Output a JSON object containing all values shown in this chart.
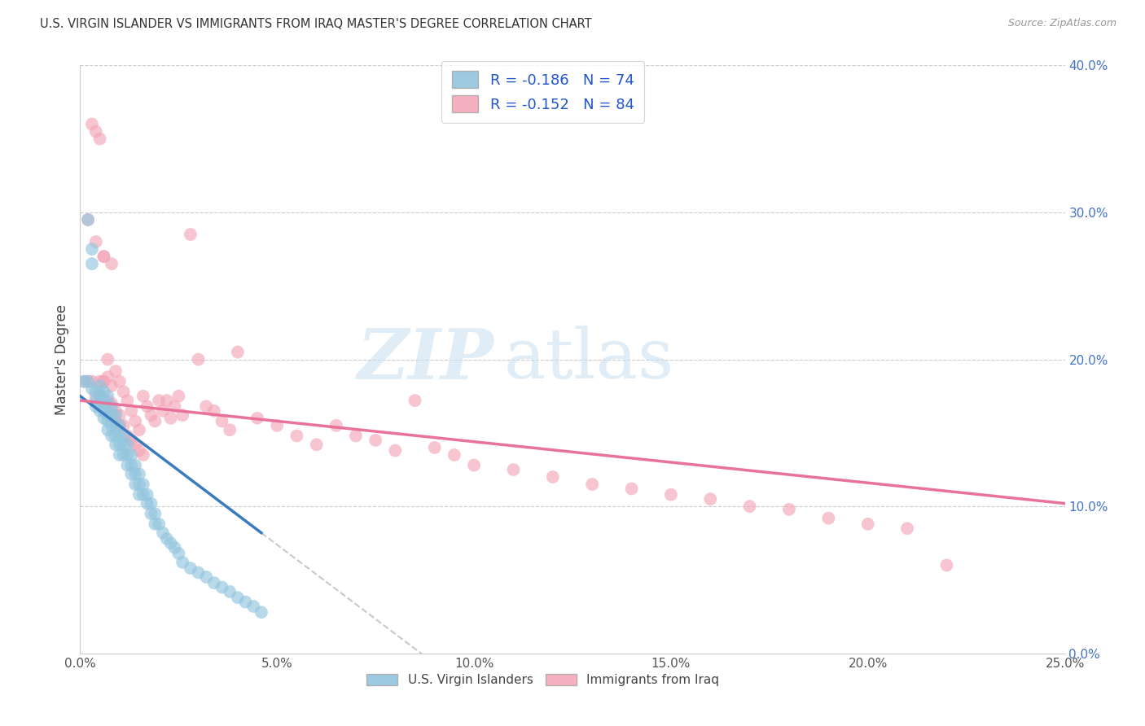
{
  "title": "U.S. VIRGIN ISLANDER VS IMMIGRANTS FROM IRAQ MASTER'S DEGREE CORRELATION CHART",
  "source": "Source: ZipAtlas.com",
  "ylabel": "Master's Degree",
  "xlabel_ticks": [
    "0.0%",
    "5.0%",
    "10.0%",
    "15.0%",
    "20.0%",
    "25.0%"
  ],
  "xlabel_vals": [
    0.0,
    0.05,
    0.1,
    0.15,
    0.2,
    0.25
  ],
  "ylabel_ticks": [
    "0.0%",
    "10.0%",
    "20.0%",
    "30.0%",
    "40.0%"
  ],
  "ylabel_vals": [
    0.0,
    0.1,
    0.2,
    0.3,
    0.4
  ],
  "xlim": [
    0.0,
    0.25
  ],
  "ylim": [
    0.0,
    0.4
  ],
  "legend1_label": "R = -0.186   N = 74",
  "legend2_label": "R = -0.152   N = 84",
  "legend_label1_bottom": "U.S. Virgin Islanders",
  "legend_label2_bottom": "Immigrants from Iraq",
  "blue_color": "#92c5de",
  "pink_color": "#f4a6b8",
  "blue_line_color": "#3a7bbf",
  "pink_line_color": "#e8729a",
  "dashed_line_color": "#bbbbbb",
  "watermark_ZIP": "ZIP",
  "watermark_atlas": "atlas",
  "blue_scatter_x": [
    0.001,
    0.002,
    0.002,
    0.003,
    0.003,
    0.003,
    0.004,
    0.004,
    0.004,
    0.005,
    0.005,
    0.005,
    0.005,
    0.006,
    0.006,
    0.006,
    0.006,
    0.007,
    0.007,
    0.007,
    0.007,
    0.007,
    0.008,
    0.008,
    0.008,
    0.008,
    0.009,
    0.009,
    0.009,
    0.009,
    0.01,
    0.01,
    0.01,
    0.01,
    0.011,
    0.011,
    0.011,
    0.012,
    0.012,
    0.012,
    0.013,
    0.013,
    0.013,
    0.014,
    0.014,
    0.014,
    0.015,
    0.015,
    0.015,
    0.016,
    0.016,
    0.017,
    0.017,
    0.018,
    0.018,
    0.019,
    0.019,
    0.02,
    0.021,
    0.022,
    0.023,
    0.024,
    0.025,
    0.026,
    0.028,
    0.03,
    0.032,
    0.034,
    0.036,
    0.038,
    0.04,
    0.042,
    0.044,
    0.046
  ],
  "blue_scatter_y": [
    0.185,
    0.295,
    0.185,
    0.275,
    0.265,
    0.18,
    0.178,
    0.172,
    0.168,
    0.182,
    0.176,
    0.17,
    0.165,
    0.178,
    0.172,
    0.165,
    0.16,
    0.175,
    0.168,
    0.162,
    0.158,
    0.152,
    0.168,
    0.162,
    0.155,
    0.148,
    0.162,
    0.155,
    0.148,
    0.142,
    0.155,
    0.148,
    0.142,
    0.135,
    0.148,
    0.142,
    0.135,
    0.142,
    0.135,
    0.128,
    0.135,
    0.128,
    0.122,
    0.128,
    0.122,
    0.115,
    0.122,
    0.115,
    0.108,
    0.115,
    0.108,
    0.108,
    0.102,
    0.102,
    0.095,
    0.095,
    0.088,
    0.088,
    0.082,
    0.078,
    0.075,
    0.072,
    0.068,
    0.062,
    0.058,
    0.055,
    0.052,
    0.048,
    0.045,
    0.042,
    0.038,
    0.035,
    0.032,
    0.028
  ],
  "pink_scatter_x": [
    0.001,
    0.002,
    0.002,
    0.003,
    0.003,
    0.004,
    0.004,
    0.004,
    0.005,
    0.005,
    0.005,
    0.006,
    0.006,
    0.006,
    0.007,
    0.007,
    0.007,
    0.008,
    0.008,
    0.008,
    0.009,
    0.009,
    0.009,
    0.01,
    0.01,
    0.01,
    0.011,
    0.011,
    0.012,
    0.012,
    0.013,
    0.013,
    0.014,
    0.014,
    0.015,
    0.015,
    0.016,
    0.016,
    0.017,
    0.018,
    0.019,
    0.02,
    0.021,
    0.022,
    0.023,
    0.024,
    0.025,
    0.026,
    0.028,
    0.03,
    0.032,
    0.034,
    0.036,
    0.038,
    0.04,
    0.045,
    0.05,
    0.055,
    0.06,
    0.065,
    0.07,
    0.075,
    0.08,
    0.085,
    0.09,
    0.095,
    0.1,
    0.11,
    0.12,
    0.13,
    0.14,
    0.15,
    0.16,
    0.17,
    0.18,
    0.19,
    0.2,
    0.21,
    0.22,
    0.005,
    0.006,
    0.006,
    0.007,
    0.008
  ],
  "pink_scatter_y": [
    0.185,
    0.295,
    0.185,
    0.36,
    0.185,
    0.355,
    0.28,
    0.175,
    0.35,
    0.185,
    0.175,
    0.27,
    0.185,
    0.172,
    0.2,
    0.172,
    0.165,
    0.265,
    0.17,
    0.162,
    0.192,
    0.165,
    0.158,
    0.185,
    0.162,
    0.155,
    0.178,
    0.155,
    0.172,
    0.148,
    0.165,
    0.145,
    0.158,
    0.142,
    0.152,
    0.138,
    0.175,
    0.135,
    0.168,
    0.162,
    0.158,
    0.172,
    0.165,
    0.172,
    0.16,
    0.168,
    0.175,
    0.162,
    0.285,
    0.2,
    0.168,
    0.165,
    0.158,
    0.152,
    0.205,
    0.16,
    0.155,
    0.148,
    0.142,
    0.155,
    0.148,
    0.145,
    0.138,
    0.172,
    0.14,
    0.135,
    0.128,
    0.125,
    0.12,
    0.115,
    0.112,
    0.108,
    0.105,
    0.1,
    0.098,
    0.092,
    0.088,
    0.085,
    0.06,
    0.175,
    0.27,
    0.185,
    0.188,
    0.182
  ]
}
